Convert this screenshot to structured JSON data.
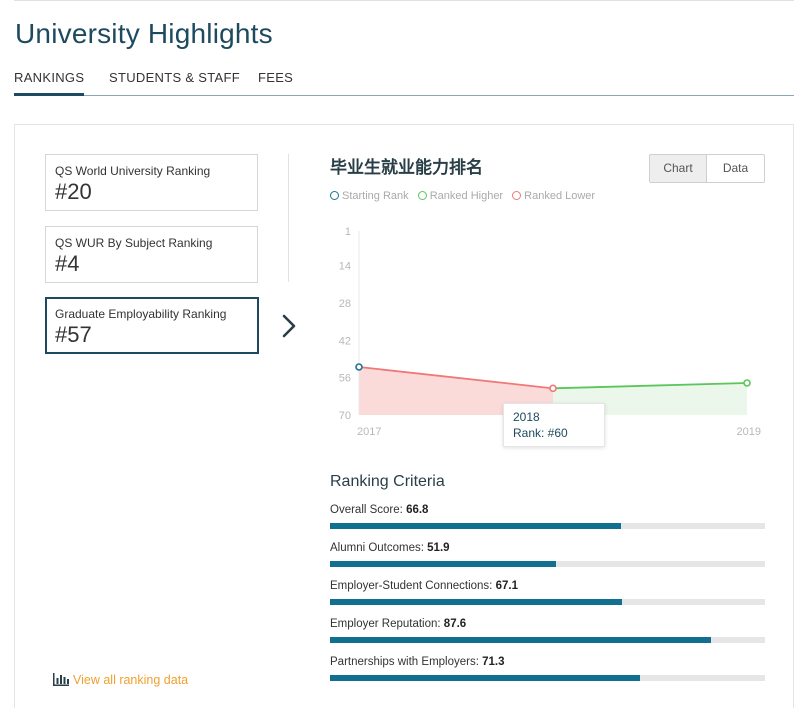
{
  "page": {
    "title": "University Highlights"
  },
  "tabs": [
    {
      "label": "RANKINGS",
      "active": true
    },
    {
      "label": "STUDENTS & STAFF",
      "active": false
    },
    {
      "label": "FEES",
      "active": false
    }
  ],
  "rankings": [
    {
      "label": "QS World University Ranking",
      "value": "#20",
      "selected": false
    },
    {
      "label": "QS WUR By Subject Ranking",
      "value": "#4",
      "selected": false
    },
    {
      "label": "Graduate Employability Ranking",
      "value": "#57",
      "selected": true
    }
  ],
  "view_all": {
    "label": "View all ranking data",
    "icon": "bar-chart-icon"
  },
  "chart_panel": {
    "title": "毕业生就业能力排名",
    "toggle": {
      "chart_label": "Chart",
      "data_label": "Data",
      "selected": "Chart"
    },
    "legend": [
      {
        "label": "Starting Rank",
        "color": "#1d7592"
      },
      {
        "label": "Ranked Higher",
        "color": "#5cc65c"
      },
      {
        "label": "Ranked Lower",
        "color": "#f07878"
      }
    ],
    "tooltip": {
      "year": "2018",
      "text": "Rank: #60"
    }
  },
  "chart_data": {
    "type": "line",
    "x": [
      2017,
      2018,
      2019
    ],
    "x_tick_labels": [
      "2017",
      "",
      "2019"
    ],
    "y": [
      52,
      60,
      58
    ],
    "y_reversed": true,
    "ylim": [
      1,
      70
    ],
    "y_ticks": [
      1,
      14,
      28,
      42,
      56,
      70
    ],
    "grid": false,
    "legend_position": "top-left",
    "colors": {
      "start": "#1d7592",
      "higher": "#5cc65c",
      "lower": "#f07878",
      "higher_fill": "#eaf7ea",
      "lower_fill": "#fbdada",
      "axis_text": "#b8b8b8"
    }
  },
  "criteria": {
    "title": "Ranking Criteria",
    "items": [
      {
        "label": "Overall Score:",
        "value": "66.8",
        "score": 66.8
      },
      {
        "label": "Alumni Outcomes:",
        "value": "51.9",
        "score": 51.9
      },
      {
        "label": "Employer-Student Connections:",
        "value": "67.1",
        "score": 67.1
      },
      {
        "label": "Employer Reputation:",
        "value": "87.6",
        "score": 87.6
      },
      {
        "label": "Partnerships with Employers:",
        "value": "71.3",
        "score": 71.3
      }
    ],
    "bar_color": "#11708f",
    "track_color": "#e6e6e6"
  }
}
